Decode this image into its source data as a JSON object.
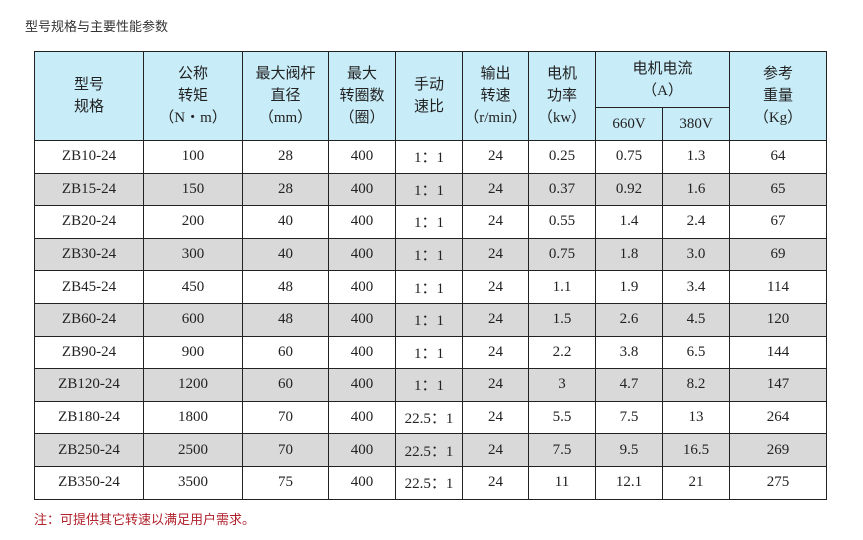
{
  "title": "型号规格与主要性能参数",
  "headers": {
    "model": [
      "型号",
      "规格"
    ],
    "torque": [
      "公称",
      "转矩",
      "（N・m）"
    ],
    "stem": [
      "最大阀杆",
      "直径",
      "（mm）"
    ],
    "turns": [
      "最大",
      "转圈数",
      "（圈）"
    ],
    "ratio": [
      "手动",
      "速比"
    ],
    "speed": [
      "输出",
      "转速",
      "（r/min）"
    ],
    "power": [
      "电机",
      "功率",
      "（kw）"
    ],
    "current": [
      "电机电流",
      "（A）"
    ],
    "v660": "660V",
    "v380": "380V",
    "weight": [
      "参考",
      "重量",
      "（Kg）"
    ]
  },
  "rows": [
    [
      "ZB10-24",
      "100",
      "28",
      "400",
      "1：1",
      "24",
      "0.25",
      "0.75",
      "1.3",
      "64"
    ],
    [
      "ZB15-24",
      "150",
      "28",
      "400",
      "1：1",
      "24",
      "0.37",
      "0.92",
      "1.6",
      "65"
    ],
    [
      "ZB20-24",
      "200",
      "40",
      "400",
      "1：1",
      "24",
      "0.55",
      "1.4",
      "2.4",
      "67"
    ],
    [
      "ZB30-24",
      "300",
      "40",
      "400",
      "1：1",
      "24",
      "0.75",
      "1.8",
      "3.0",
      "69"
    ],
    [
      "ZB45-24",
      "450",
      "48",
      "400",
      "1：1",
      "24",
      "1.1",
      "1.9",
      "3.4",
      "114"
    ],
    [
      "ZB60-24",
      "600",
      "48",
      "400",
      "1：1",
      "24",
      "1.5",
      "2.6",
      "4.5",
      "120"
    ],
    [
      "ZB90-24",
      "900",
      "60",
      "400",
      "1：1",
      "24",
      "2.2",
      "3.8",
      "6.5",
      "144"
    ],
    [
      "ZB120-24",
      "1200",
      "60",
      "400",
      "1：1",
      "24",
      "3",
      "4.7",
      "8.2",
      "147"
    ],
    [
      "ZB180-24",
      "1800",
      "70",
      "400",
      "22.5：1",
      "24",
      "5.5",
      "7.5",
      "13",
      "264"
    ],
    [
      "ZB250-24",
      "2500",
      "70",
      "400",
      "22.5：1",
      "24",
      "7.5",
      "9.5",
      "16.5",
      "269"
    ],
    [
      "ZB350-24",
      "3500",
      "75",
      "400",
      "22.5：1",
      "24",
      "11",
      "12.1",
      "21",
      "275"
    ]
  ],
  "note": "注：可提供其它转速以满足用户需求。",
  "colors": {
    "header_bg": "#c8ecf8",
    "alt_row_bg": "#d9d9d9",
    "note": "#b0202a"
  }
}
